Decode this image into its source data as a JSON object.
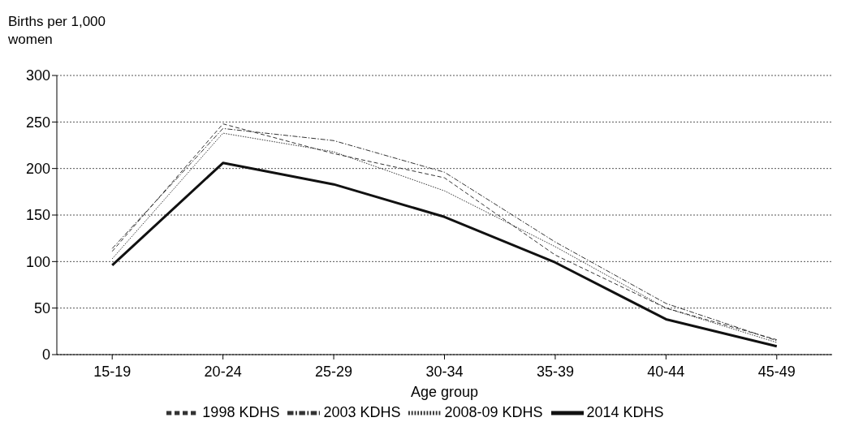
{
  "chart_data": {
    "type": "line",
    "ylabel": "Births per 1,000 women",
    "xlabel": "Age group",
    "categories": [
      "15-19",
      "20-24",
      "25-29",
      "30-34",
      "35-39",
      "40-44",
      "45-49"
    ],
    "series": [
      {
        "name": "1998 KDHS",
        "color": "#333333",
        "line_style": "dashed",
        "values": [
          111,
          248,
          216,
          190,
          107,
          50,
          16
        ]
      },
      {
        "name": "2003 KDHS",
        "color": "#333333",
        "line_style": "dashdot",
        "values": [
          114,
          243,
          230,
          196,
          121,
          55,
          15
        ]
      },
      {
        "name": "2008-09 KDHS",
        "color": "#333333",
        "line_style": "dotted",
        "values": [
          103,
          238,
          218,
          176,
          116,
          50,
          13
        ]
      },
      {
        "name": "2014 KDHS",
        "color": "#111111",
        "line_style": "solid",
        "values": [
          96,
          206,
          183,
          148,
          99,
          38,
          9
        ]
      }
    ],
    "ylim": [
      0,
      300
    ],
    "yticks": [
      0,
      50,
      100,
      150,
      200,
      250,
      300
    ],
    "grid": "y",
    "legend": "bottom",
    "marker": "none"
  }
}
